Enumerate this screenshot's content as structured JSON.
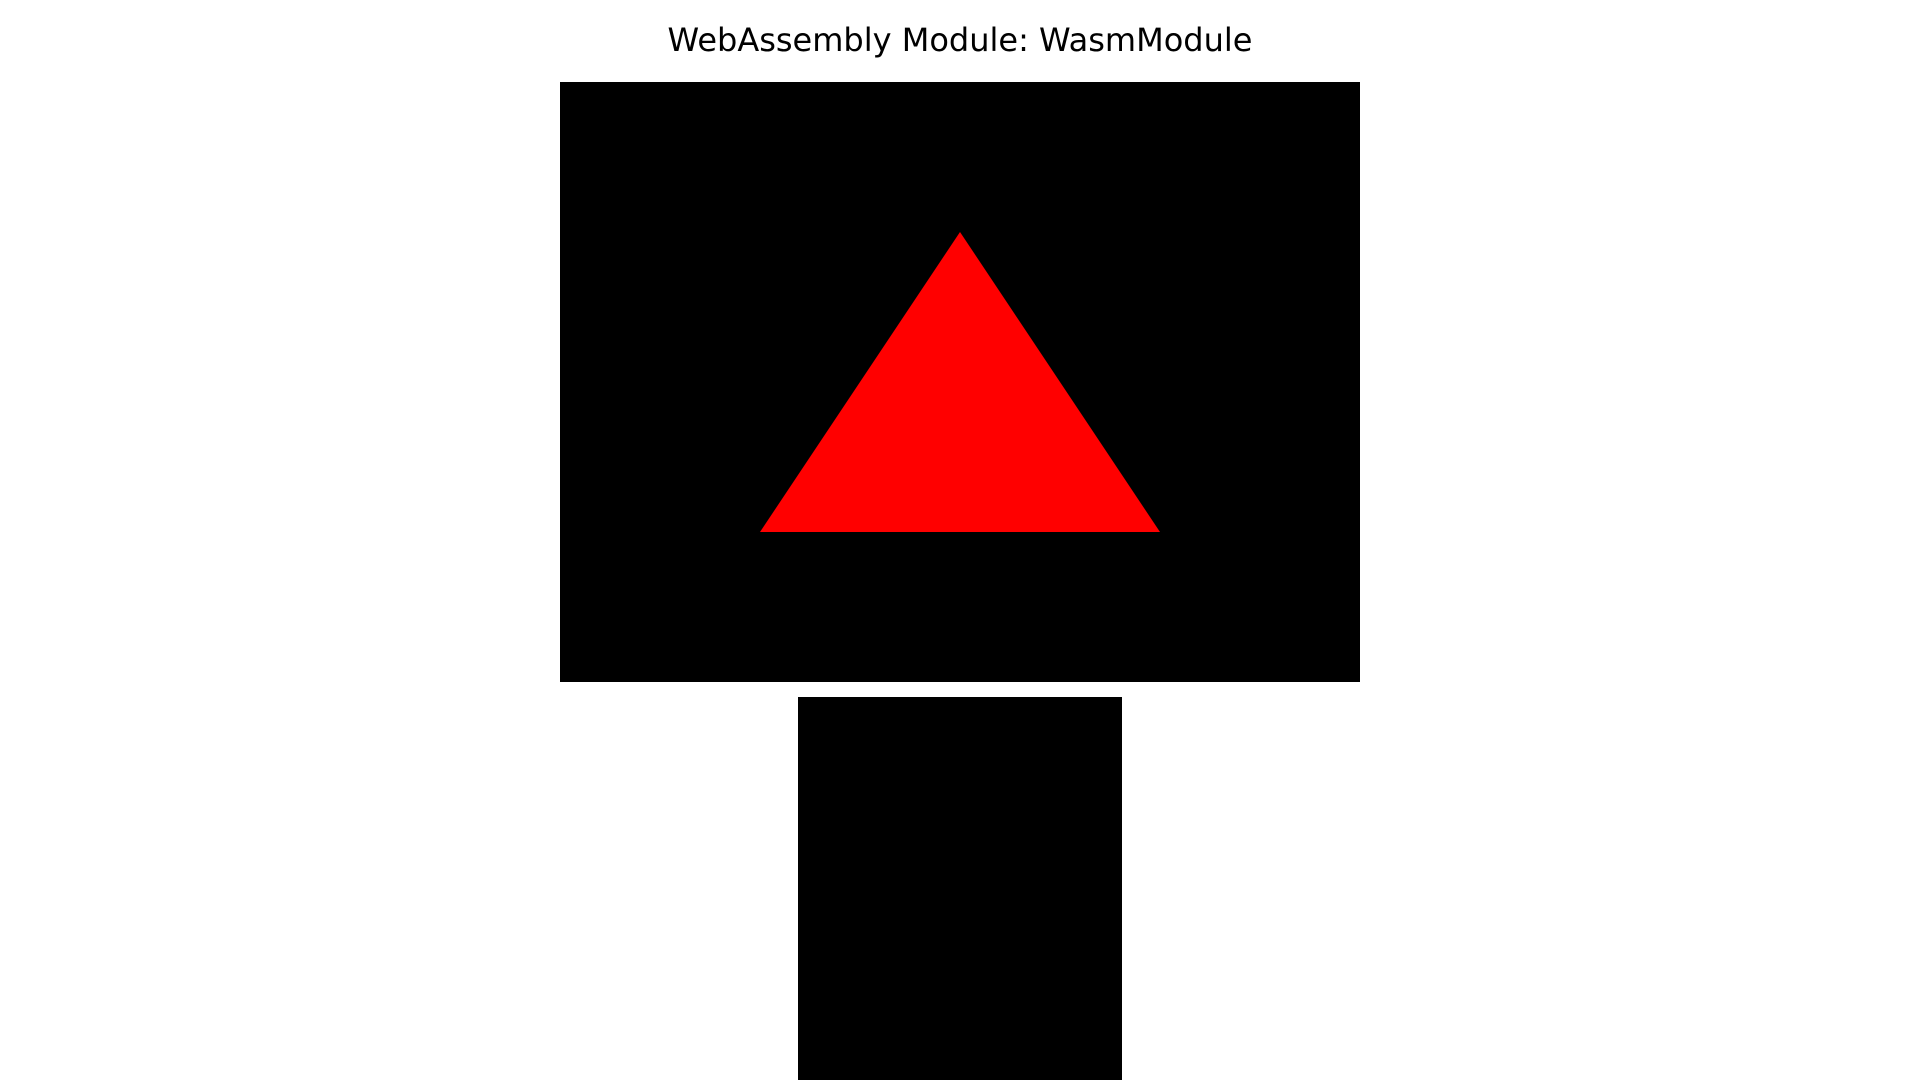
{
  "page": {
    "title": "WebAssembly Module: WasmModule"
  },
  "canvas": {
    "background_color": "#000000",
    "shape": {
      "type": "triangle",
      "fill_color": "#ff0000"
    }
  },
  "secondary_canvas": {
    "background_color": "#000000"
  }
}
